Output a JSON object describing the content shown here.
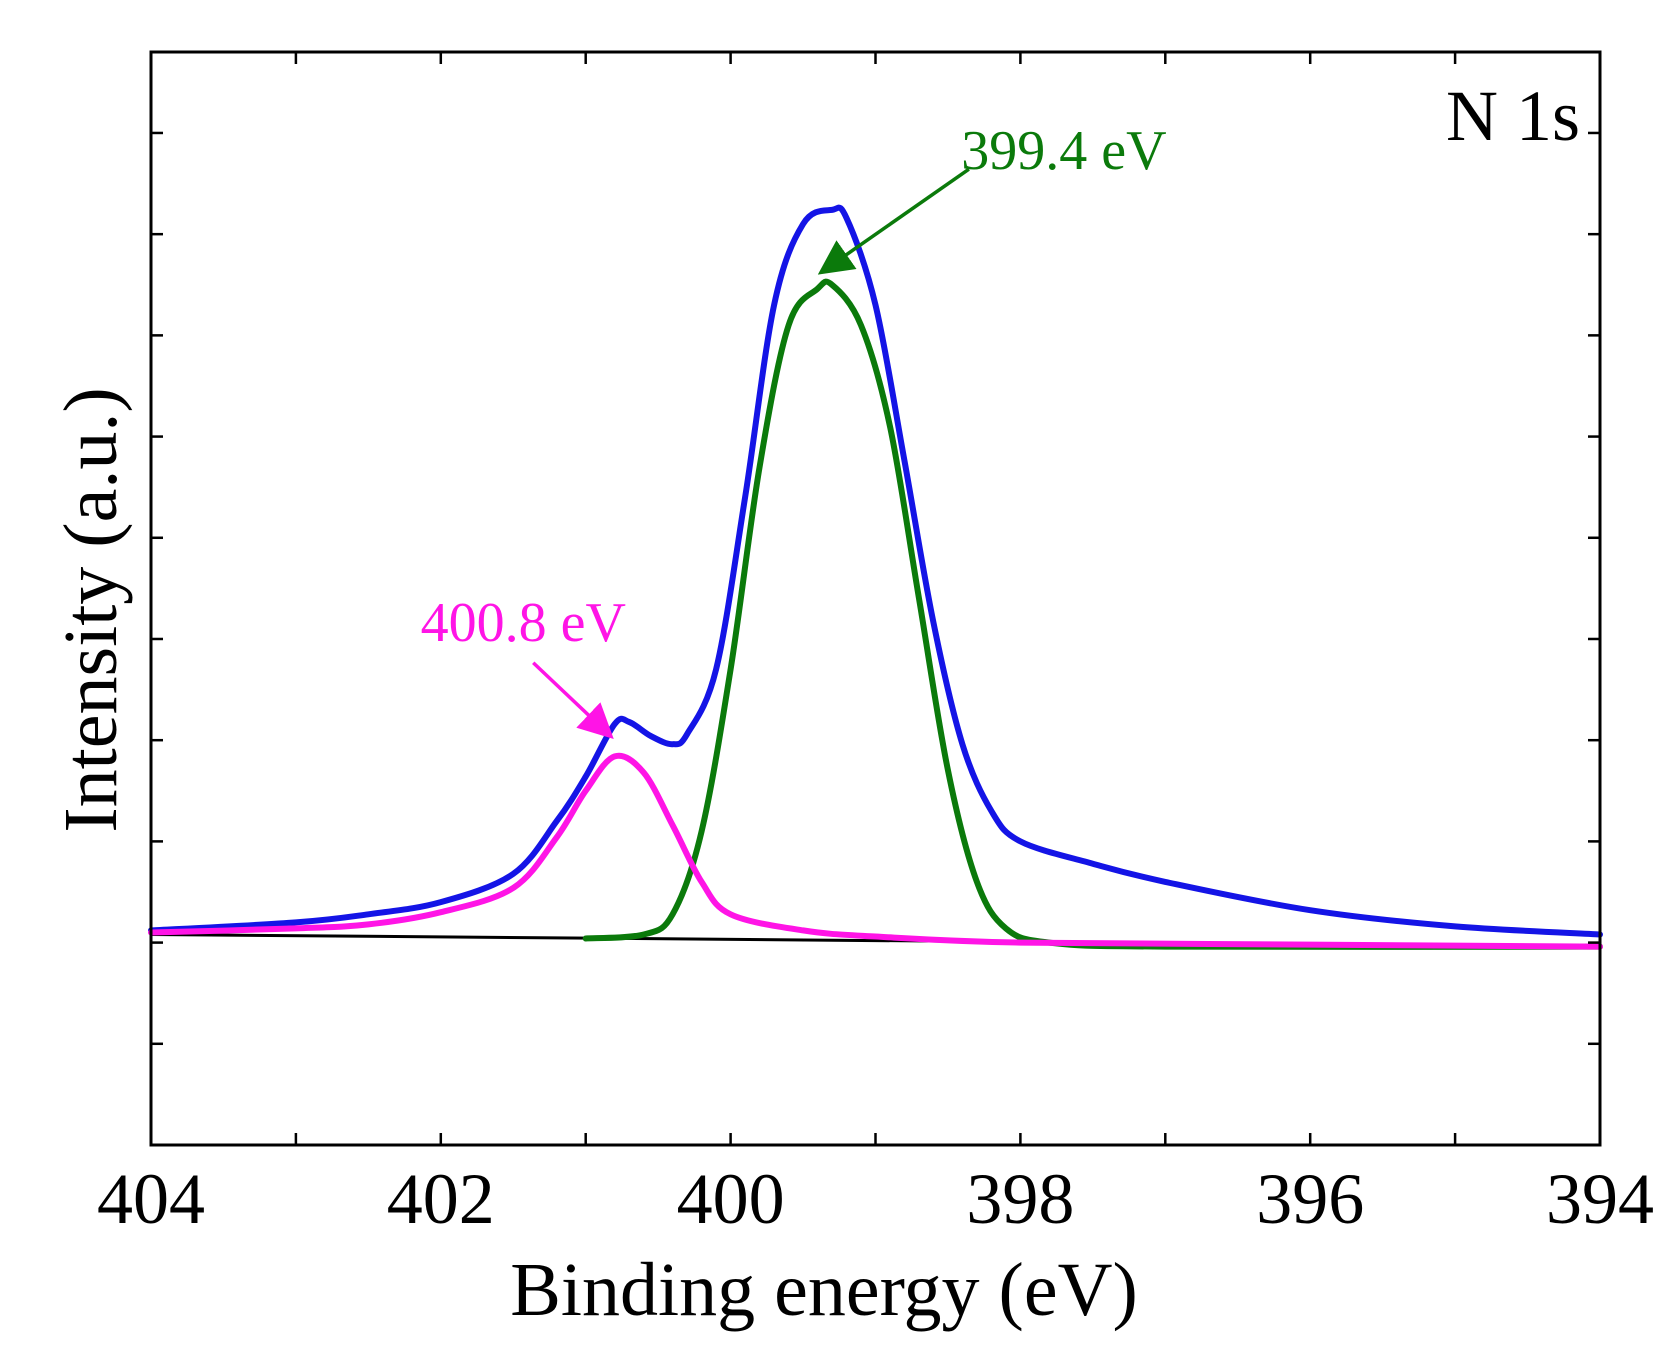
{
  "chart_data": {
    "type": "line",
    "title": "",
    "panel_label": "N 1s",
    "xlabel": "Binding energy (eV)",
    "ylabel": "Intensity (a.u.)",
    "xlim": [
      404,
      394
    ],
    "ylim": [
      -1.0,
      4.4
    ],
    "x_ticks": [
      404,
      402,
      400,
      398,
      396,
      394
    ],
    "x_tick_labels": [
      "404",
      "402",
      "400",
      "398",
      "396",
      "394"
    ],
    "x_minor_step": 1,
    "y_tick_step": 0.5,
    "y_ticks_labeled": false,
    "grid": false,
    "legend": "none",
    "colors": {
      "envelope": "#1414e6",
      "peak_399": "#0b7a0b",
      "peak_400": "#ff14e6",
      "baseline": "#000000",
      "axes": "#000000"
    },
    "series": [
      {
        "name": "baseline",
        "points": [
          [
            404,
            0.04
          ],
          [
            394,
            -0.02
          ]
        ]
      },
      {
        "name": "envelope",
        "points": [
          [
            404,
            0.06
          ],
          [
            403,
            0.1
          ],
          [
            402.5,
            0.14
          ],
          [
            402,
            0.2
          ],
          [
            401.5,
            0.34
          ],
          [
            401.2,
            0.6
          ],
          [
            401.0,
            0.82
          ],
          [
            400.8,
            1.08
          ],
          [
            400.7,
            1.09
          ],
          [
            400.55,
            1.02
          ],
          [
            400.4,
            0.98
          ],
          [
            400.3,
            1.03
          ],
          [
            400.1,
            1.35
          ],
          [
            399.9,
            2.2
          ],
          [
            399.7,
            3.15
          ],
          [
            399.5,
            3.55
          ],
          [
            399.3,
            3.62
          ],
          [
            399.2,
            3.58
          ],
          [
            399.0,
            3.15
          ],
          [
            398.8,
            2.38
          ],
          [
            398.6,
            1.58
          ],
          [
            398.4,
            0.98
          ],
          [
            398.2,
            0.65
          ],
          [
            398.0,
            0.5
          ],
          [
            397.5,
            0.39
          ],
          [
            397.0,
            0.3
          ],
          [
            396.0,
            0.16
          ],
          [
            395.0,
            0.08
          ],
          [
            394.0,
            0.04
          ]
        ]
      },
      {
        "name": "peak 399.4 eV",
        "points": [
          [
            401.0,
            0.02
          ],
          [
            400.6,
            0.04
          ],
          [
            400.4,
            0.14
          ],
          [
            400.2,
            0.55
          ],
          [
            400.0,
            1.35
          ],
          [
            399.8,
            2.35
          ],
          [
            399.6,
            3.05
          ],
          [
            399.4,
            3.23
          ],
          [
            399.3,
            3.25
          ],
          [
            399.1,
            3.05
          ],
          [
            398.9,
            2.55
          ],
          [
            398.7,
            1.7
          ],
          [
            398.5,
            0.85
          ],
          [
            398.3,
            0.3
          ],
          [
            398.1,
            0.07
          ],
          [
            397.8,
            0.0
          ],
          [
            397.0,
            -0.02
          ],
          [
            394.0,
            -0.02
          ]
        ]
      },
      {
        "name": "peak 400.8 eV",
        "points": [
          [
            404,
            0.05
          ],
          [
            403,
            0.07
          ],
          [
            402.5,
            0.09
          ],
          [
            402,
            0.15
          ],
          [
            401.5,
            0.27
          ],
          [
            401.2,
            0.52
          ],
          [
            401.0,
            0.75
          ],
          [
            400.8,
            0.92
          ],
          [
            400.6,
            0.84
          ],
          [
            400.4,
            0.58
          ],
          [
            400.2,
            0.3
          ],
          [
            400.0,
            0.14
          ],
          [
            399.5,
            0.06
          ],
          [
            399.0,
            0.03
          ],
          [
            398.0,
            0.0
          ],
          [
            396.0,
            -0.01
          ],
          [
            394.0,
            -0.02
          ]
        ]
      }
    ],
    "annotations": [
      {
        "text": "399.4 eV",
        "color": "#0b7a0b",
        "arrow_to": [
          399.4,
          3.3
        ],
        "label_at": [
          397.7,
          3.92
        ]
      },
      {
        "text": "400.8 eV",
        "color": "#ff14e6",
        "arrow_to": [
          400.8,
          1.0
        ],
        "label_at": [
          401.5,
          1.58
        ]
      }
    ]
  }
}
